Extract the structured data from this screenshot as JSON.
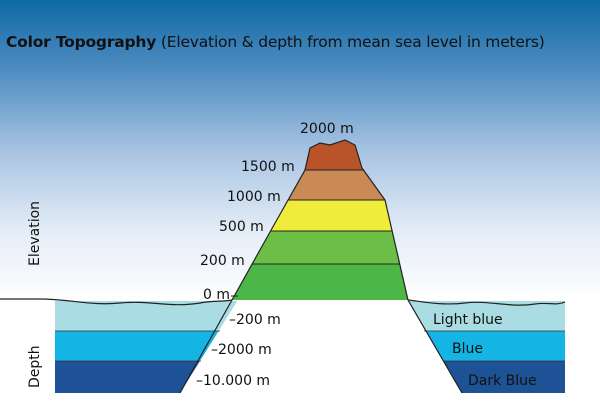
{
  "title": {
    "bold": "Color Topography",
    "rest": "(Elevation & depth from mean sea level in meters)"
  },
  "axis_labels": {
    "elevation": "Elevation",
    "depth": "Depth"
  },
  "elevation_levels": [
    "2000 m",
    "1500 m",
    "1000 m",
    "500 m",
    "200 m",
    "0 m"
  ],
  "depth_levels": [
    "–200 m",
    "–2000 m",
    "–10.000 m"
  ],
  "depth_colors": [
    "Light blue",
    "Blue",
    "Dark Blue"
  ],
  "colors": {
    "band_2000": "#b9542a",
    "band_1500": "#c98a55",
    "band_1000": "#f0ec3c",
    "band_500": "#6cbf46",
    "band_0": "#4cb647",
    "light_blue": "#a9dde3",
    "blue": "#14b4e5",
    "dark_blue": "#1e5296"
  }
}
